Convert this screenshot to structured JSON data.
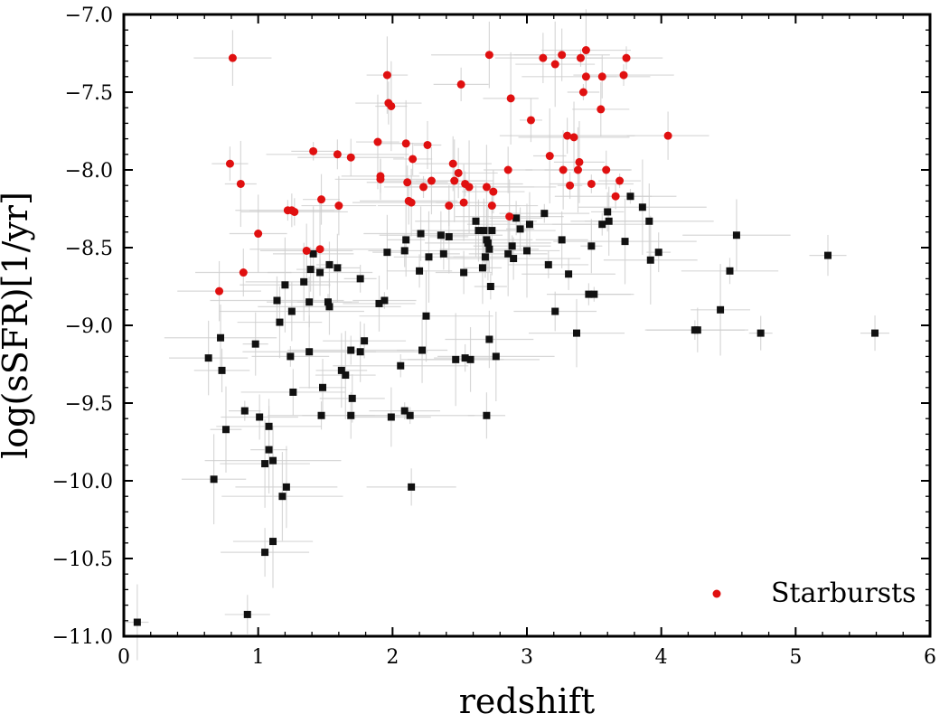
{
  "chart_data": {
    "type": "scatter",
    "title": "",
    "xlabel": "redshift",
    "ylabel": "log(sSFR)[1/yr]",
    "xlim": [
      0,
      6
    ],
    "ylim": [
      -11.0,
      -7.0
    ],
    "xticks": [
      0,
      1,
      2,
      3,
      4,
      5,
      6
    ],
    "yticks": [
      -11.0,
      -10.5,
      -10.0,
      -9.5,
      -9.0,
      -8.5,
      -8.0,
      -7.5,
      -7.0
    ],
    "xtick_labels": [
      "0",
      "1",
      "2",
      "3",
      "4",
      "5",
      "6"
    ],
    "ytick_labels": [
      "−11.0",
      "−10.5",
      "−10.0",
      "−9.5",
      "−9.0",
      "−8.5",
      "−8.0",
      "−7.5",
      "−7.0"
    ],
    "grid": false,
    "legend_position": "bottom-right",
    "series": [
      {
        "name": "Starbursts",
        "marker": "circle",
        "color": "#e01010",
        "points": [
          [
            0.71,
            -8.78
          ],
          [
            0.79,
            -7.96
          ],
          [
            0.81,
            -7.28
          ],
          [
            0.87,
            -8.09
          ],
          [
            0.89,
            -8.66
          ],
          [
            1.0,
            -8.41
          ],
          [
            1.22,
            -8.26
          ],
          [
            1.25,
            -8.26
          ],
          [
            1.27,
            -8.27
          ],
          [
            1.36,
            -8.52
          ],
          [
            1.41,
            -7.88
          ],
          [
            1.46,
            -8.51
          ],
          [
            1.47,
            -8.19
          ],
          [
            1.59,
            -7.9
          ],
          [
            1.6,
            -8.23
          ],
          [
            1.69,
            -7.92
          ],
          [
            1.89,
            -7.82
          ],
          [
            1.91,
            -8.04
          ],
          [
            1.91,
            -8.06
          ],
          [
            1.96,
            -7.39
          ],
          [
            1.97,
            -7.57
          ],
          [
            1.99,
            -7.59
          ],
          [
            2.1,
            -7.83
          ],
          [
            2.11,
            -8.08
          ],
          [
            2.12,
            -8.2
          ],
          [
            2.14,
            -8.21
          ],
          [
            2.15,
            -7.93
          ],
          [
            2.23,
            -8.11
          ],
          [
            2.26,
            -7.84
          ],
          [
            2.29,
            -8.07
          ],
          [
            2.42,
            -8.23
          ],
          [
            2.45,
            -7.96
          ],
          [
            2.46,
            -8.07
          ],
          [
            2.49,
            -8.02
          ],
          [
            2.51,
            -7.45
          ],
          [
            2.54,
            -8.09
          ],
          [
            2.53,
            -8.21
          ],
          [
            2.57,
            -8.11
          ],
          [
            2.7,
            -8.11
          ],
          [
            2.72,
            -7.26
          ],
          [
            2.74,
            -8.23
          ],
          [
            2.75,
            -8.14
          ],
          [
            2.86,
            -8.0
          ],
          [
            2.87,
            -8.3
          ],
          [
            2.88,
            -7.54
          ],
          [
            3.03,
            -7.68
          ],
          [
            3.12,
            -7.28
          ],
          [
            3.17,
            -7.91
          ],
          [
            3.21,
            -7.32
          ],
          [
            3.26,
            -7.26
          ],
          [
            3.27,
            -8.0
          ],
          [
            3.3,
            -7.78
          ],
          [
            3.32,
            -8.1
          ],
          [
            3.35,
            -7.79
          ],
          [
            3.38,
            -8.0
          ],
          [
            3.39,
            -7.95
          ],
          [
            3.4,
            -7.28
          ],
          [
            3.42,
            -7.5
          ],
          [
            3.44,
            -7.23
          ],
          [
            3.44,
            -7.4
          ],
          [
            3.48,
            -8.09
          ],
          [
            3.55,
            -7.61
          ],
          [
            3.56,
            -7.4
          ],
          [
            3.59,
            -8.0
          ],
          [
            3.66,
            -8.17
          ],
          [
            3.69,
            -8.07
          ],
          [
            3.72,
            -7.39
          ],
          [
            3.74,
            -7.28
          ],
          [
            4.05,
            -7.78
          ]
        ]
      },
      {
        "name": "",
        "marker": "square",
        "color": "#111111",
        "points": [
          [
            0.1,
            -10.91
          ],
          [
            0.63,
            -9.21
          ],
          [
            0.67,
            -9.99
          ],
          [
            0.72,
            -9.08
          ],
          [
            0.73,
            -9.29
          ],
          [
            0.76,
            -9.67
          ],
          [
            0.9,
            -9.55
          ],
          [
            0.92,
            -10.86
          ],
          [
            0.98,
            -9.12
          ],
          [
            1.01,
            -9.59
          ],
          [
            1.05,
            -9.89
          ],
          [
            1.05,
            -10.46
          ],
          [
            1.08,
            -9.8
          ],
          [
            1.08,
            -9.65
          ],
          [
            1.11,
            -9.87
          ],
          [
            1.11,
            -10.39
          ],
          [
            1.14,
            -8.84
          ],
          [
            1.16,
            -8.98
          ],
          [
            1.18,
            -10.1
          ],
          [
            1.2,
            -8.74
          ],
          [
            1.21,
            -10.04
          ],
          [
            1.24,
            -9.2
          ],
          [
            1.25,
            -8.91
          ],
          [
            1.26,
            -9.43
          ],
          [
            1.34,
            -8.72
          ],
          [
            1.38,
            -8.85
          ],
          [
            1.38,
            -9.17
          ],
          [
            1.39,
            -8.64
          ],
          [
            1.41,
            -8.54
          ],
          [
            1.46,
            -8.66
          ],
          [
            1.47,
            -9.58
          ],
          [
            1.48,
            -9.4
          ],
          [
            1.52,
            -8.85
          ],
          [
            1.53,
            -8.88
          ],
          [
            1.53,
            -8.61
          ],
          [
            1.59,
            -8.63
          ],
          [
            1.62,
            -9.29
          ],
          [
            1.65,
            -9.32
          ],
          [
            1.69,
            -9.58
          ],
          [
            1.69,
            -9.16
          ],
          [
            1.7,
            -9.47
          ],
          [
            1.76,
            -9.17
          ],
          [
            1.76,
            -8.7
          ],
          [
            1.79,
            -9.1
          ],
          [
            1.9,
            -8.86
          ],
          [
            1.94,
            -8.84
          ],
          [
            1.96,
            -8.53
          ],
          [
            1.99,
            -9.59
          ],
          [
            2.06,
            -9.26
          ],
          [
            2.09,
            -8.52
          ],
          [
            2.09,
            -9.55
          ],
          [
            2.1,
            -8.45
          ],
          [
            2.13,
            -9.58
          ],
          [
            2.14,
            -10.04
          ],
          [
            2.2,
            -8.65
          ],
          [
            2.21,
            -8.41
          ],
          [
            2.22,
            -9.16
          ],
          [
            2.25,
            -8.94
          ],
          [
            2.27,
            -8.56
          ],
          [
            2.36,
            -8.42
          ],
          [
            2.38,
            -8.54
          ],
          [
            2.42,
            -8.43
          ],
          [
            2.47,
            -9.22
          ],
          [
            2.53,
            -8.66
          ],
          [
            2.54,
            -9.21
          ],
          [
            2.58,
            -9.22
          ],
          [
            2.62,
            -8.33
          ],
          [
            2.64,
            -8.39
          ],
          [
            2.67,
            -8.63
          ],
          [
            2.68,
            -8.39
          ],
          [
            2.69,
            -8.56
          ],
          [
            2.7,
            -8.45
          ],
          [
            2.7,
            -9.58
          ],
          [
            2.71,
            -8.47
          ],
          [
            2.72,
            -9.09
          ],
          [
            2.72,
            -8.51
          ],
          [
            2.73,
            -8.75
          ],
          [
            2.74,
            -8.39
          ],
          [
            2.77,
            -9.2
          ],
          [
            2.86,
            -8.54
          ],
          [
            2.89,
            -8.49
          ],
          [
            2.9,
            -8.57
          ],
          [
            2.92,
            -8.31
          ],
          [
            2.95,
            -8.38
          ],
          [
            3.0,
            -8.52
          ],
          [
            3.02,
            -8.35
          ],
          [
            3.13,
            -8.28
          ],
          [
            3.16,
            -8.61
          ],
          [
            3.21,
            -8.91
          ],
          [
            3.26,
            -8.45
          ],
          [
            3.31,
            -8.67
          ],
          [
            3.37,
            -9.05
          ],
          [
            3.46,
            -8.8
          ],
          [
            3.48,
            -8.49
          ],
          [
            3.5,
            -8.8
          ],
          [
            3.56,
            -8.35
          ],
          [
            3.6,
            -8.27
          ],
          [
            3.61,
            -8.33
          ],
          [
            3.73,
            -8.46
          ],
          [
            3.77,
            -8.17
          ],
          [
            3.86,
            -8.24
          ],
          [
            3.91,
            -8.33
          ],
          [
            3.92,
            -8.58
          ],
          [
            3.98,
            -8.53
          ],
          [
            4.25,
            -9.03
          ],
          [
            4.27,
            -9.03
          ],
          [
            4.44,
            -8.9
          ],
          [
            4.51,
            -8.65
          ],
          [
            4.56,
            -8.42
          ],
          [
            4.74,
            -9.05
          ],
          [
            5.24,
            -8.55
          ],
          [
            5.59,
            -9.05
          ]
        ]
      }
    ],
    "legend": [
      {
        "label": "Starbursts",
        "marker": "circle",
        "color": "#e01010"
      }
    ]
  }
}
